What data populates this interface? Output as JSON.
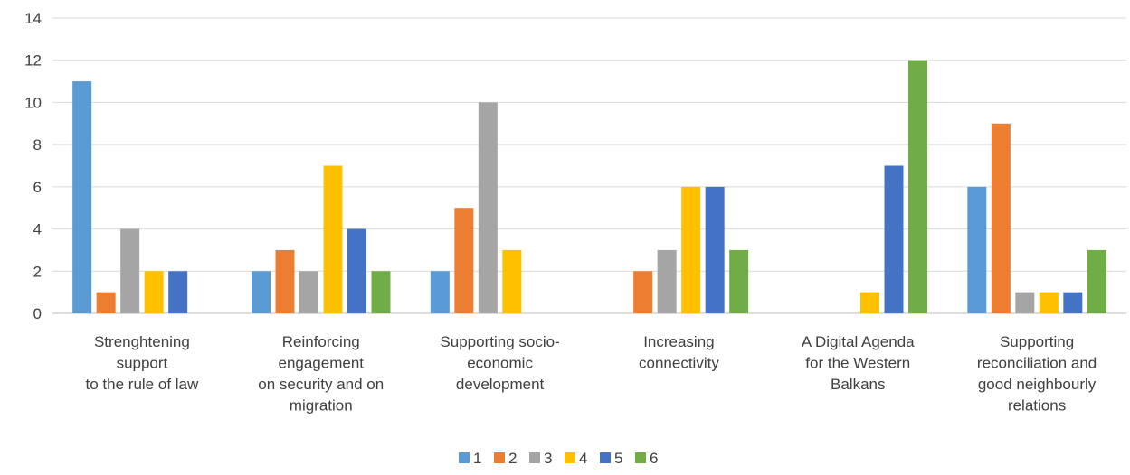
{
  "chart_data": {
    "type": "bar",
    "title": "",
    "xlabel": "",
    "ylabel": "",
    "ylim": [
      0,
      14
    ],
    "yticks": [
      0,
      2,
      4,
      6,
      8,
      10,
      12,
      14
    ],
    "grid": true,
    "legend_position": "bottom",
    "categories": [
      [
        "Strenghtening",
        "support",
        "to the rule of law"
      ],
      [
        "Reinforcing",
        "engagement",
        "on security and on",
        "migration"
      ],
      [
        "Supporting socio-",
        "economic",
        "development"
      ],
      [
        "Increasing",
        "connectivity"
      ],
      [
        "A Digital Agenda",
        "for the Western",
        "Balkans"
      ],
      [
        "Supporting",
        "reconciliation and",
        "good neighbourly",
        "relations"
      ]
    ],
    "series": [
      {
        "name": "1",
        "color": "#5B9BD5",
        "values": [
          11,
          2,
          2,
          0,
          0,
          6
        ]
      },
      {
        "name": "2",
        "color": "#ED7D31",
        "values": [
          1,
          3,
          5,
          2,
          0,
          9
        ]
      },
      {
        "name": "3",
        "color": "#A5A5A5",
        "values": [
          4,
          2,
          10,
          3,
          0,
          1
        ]
      },
      {
        "name": "4",
        "color": "#FFC000",
        "values": [
          2,
          7,
          3,
          6,
          1,
          1
        ]
      },
      {
        "name": "5",
        "color": "#4472C4",
        "values": [
          2,
          4,
          0,
          6,
          7,
          1
        ]
      },
      {
        "name": "6",
        "color": "#70AD47",
        "values": [
          0,
          2,
          0,
          3,
          12,
          3
        ]
      }
    ]
  }
}
